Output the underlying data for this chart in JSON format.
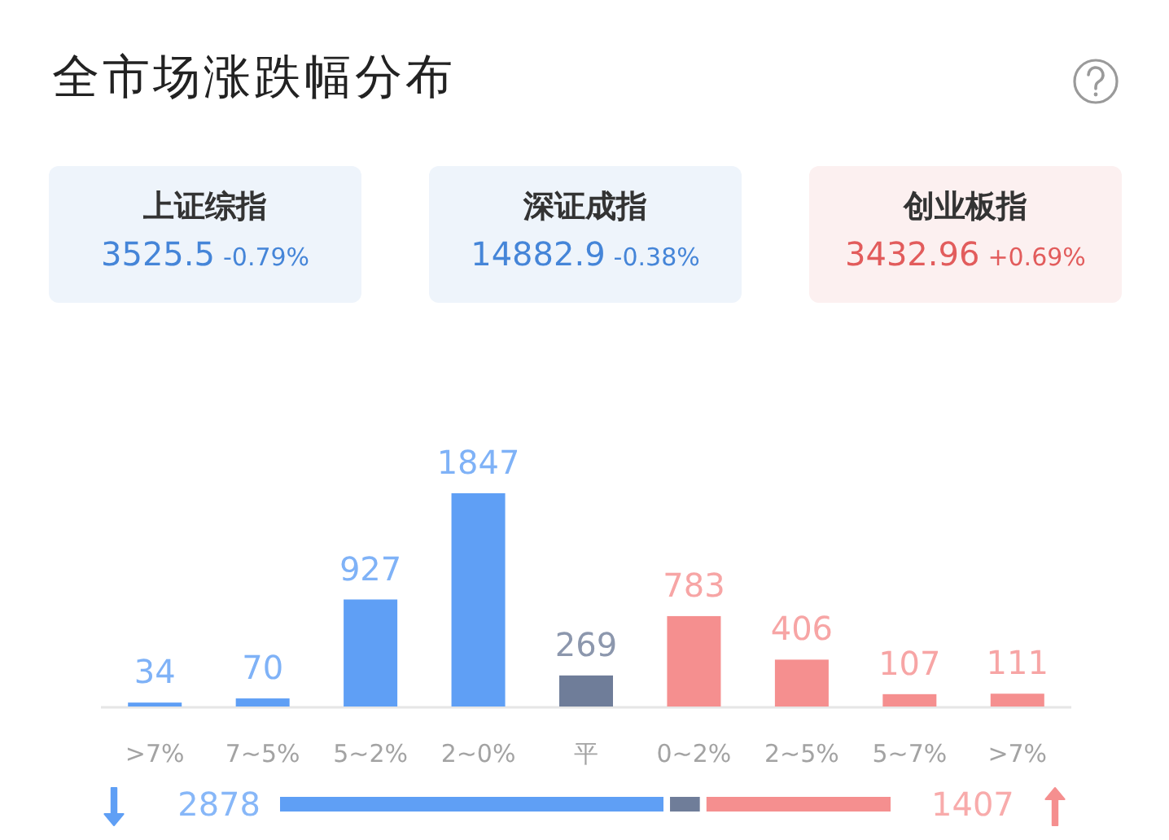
{
  "chart_data": [
    {
      "type": "other",
      "title": "全市场涨跌幅分布"
    },
    {
      "type": "other",
      "title": "上证综指",
      "annotations": [
        "3525.5",
        "-0.79%"
      ],
      "color": "#4585d8"
    },
    {
      "type": "other",
      "title": "深证成指",
      "annotations": [
        "14882.9",
        "-0.38%"
      ],
      "color": "#4585d8"
    },
    {
      "type": "other",
      "title": "创业板指",
      "annotations": [
        "3432.96",
        "+0.69%"
      ],
      "color": "#e25c5c"
    },
    {
      "type": "bar",
      "categories": [
        ">7%",
        "7~5%",
        "5~2%",
        "2~0%",
        "平",
        "0~2%",
        "2~5%",
        "5~7%",
        ">7%"
      ],
      "values": [
        34,
        70,
        927,
        1847,
        269,
        783,
        406,
        107,
        111
      ],
      "colors": [
        "#5f9ff5",
        "#5f9ff5",
        "#5f9ff5",
        "#5f9ff5",
        "#6f7d99",
        "#f58f8f",
        "#f58f8f",
        "#f58f8f",
        "#f58f8f"
      ],
      "data_labels": true
    },
    {
      "type": "bar",
      "orientation": "horizontal",
      "stacked": true,
      "categories": [
        null
      ],
      "series": [
        {
          "color": "#5f9ff5",
          "values": [
            2878
          ],
          "value_labels": [
            "2878"
          ]
        },
        {
          "color": "#6f7d99",
          "values": [
            269
          ],
          "value_labels": [
            null
          ]
        },
        {
          "color": "#f58f8f",
          "values": [
            1407
          ],
          "value_labels": [
            "1407"
          ]
        }
      ]
    }
  ]
}
